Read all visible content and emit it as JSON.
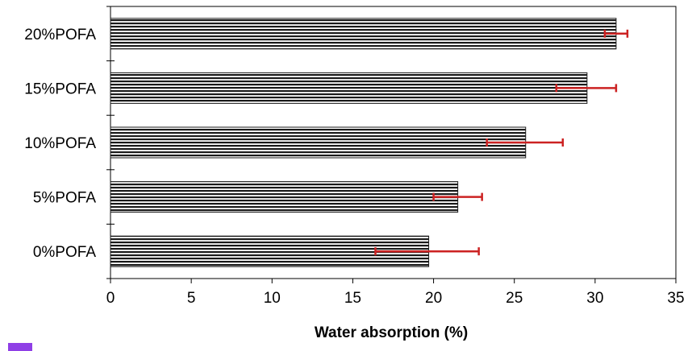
{
  "chart_data": {
    "type": "bar",
    "orientation": "horizontal",
    "categories": [
      "0%POFA",
      "5%POFA",
      "10%POFA",
      "15%POFA",
      "20%POFA"
    ],
    "values": [
      19.7,
      21.5,
      25.7,
      29.5,
      31.3
    ],
    "error_low": [
      16.4,
      20.0,
      23.3,
      27.6,
      30.6
    ],
    "error_high": [
      22.8,
      23.0,
      28.0,
      31.3,
      32.0
    ],
    "title": "",
    "xlabel": "Water absorption (%)",
    "ylabel": "",
    "xlim": [
      0,
      35
    ],
    "xticks": [
      0,
      5,
      10,
      15,
      20,
      25,
      30,
      35
    ],
    "grid": false,
    "legend": "none",
    "colors": {
      "bar_fill": "#ffffff",
      "bar_stripe": "#1a1a1a",
      "error_bar": "#cc2222",
      "axis": "#000000"
    }
  }
}
